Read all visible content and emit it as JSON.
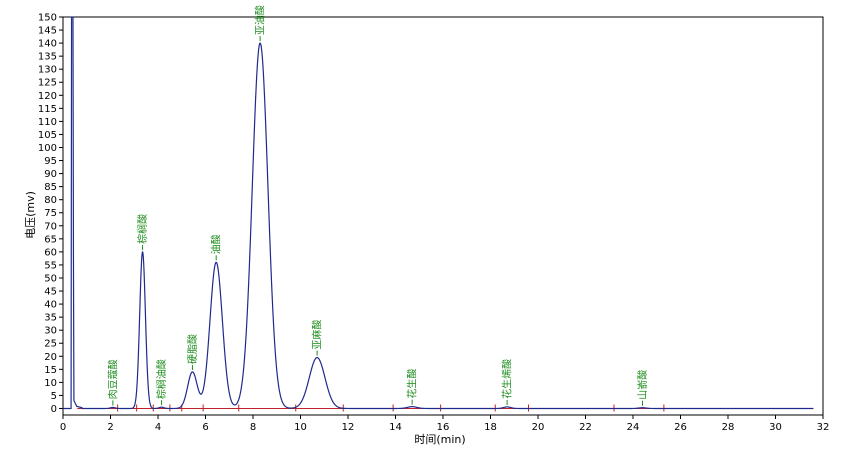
{
  "chart_data": {
    "type": "line",
    "xlabel": "时间(min)",
    "ylabel": "电压(mv)",
    "xlim": [
      0,
      32
    ],
    "ylim": [
      -2.5,
      150
    ],
    "x_ticks": [
      0,
      2,
      4,
      6,
      8,
      10,
      12,
      14,
      16,
      18,
      20,
      22,
      24,
      26,
      28,
      30,
      32
    ],
    "y_ticks": [
      0,
      5,
      10,
      15,
      20,
      25,
      30,
      35,
      40,
      45,
      50,
      55,
      60,
      65,
      70,
      75,
      80,
      85,
      90,
      95,
      100,
      105,
      110,
      115,
      120,
      125,
      130,
      135,
      140,
      145,
      150
    ],
    "grid": false,
    "colors": {
      "trace": "#1f2a8c",
      "baseline": "#c0202a",
      "peak_label": "#1c8c1c",
      "marker": "#c0202a",
      "axis": "#000000"
    },
    "solvent_front": {
      "time": 0.38,
      "height": 150
    },
    "peaks": [
      {
        "name": "肉豆蔻酸",
        "time": 2.1,
        "height": 0.4,
        "width": 0.1
      },
      {
        "name": "棕榈酸",
        "time": 3.35,
        "height": 60,
        "width": 0.12
      },
      {
        "name": "棕榈油酸",
        "time": 4.15,
        "height": 0.5,
        "width": 0.1
      },
      {
        "name": "硬脂酸",
        "time": 5.45,
        "height": 14,
        "width": 0.2
      },
      {
        "name": "油酸",
        "time": 6.45,
        "height": 56,
        "width": 0.26
      },
      {
        "name": "亚油酸",
        "time": 8.3,
        "height": 140,
        "width": 0.33
      },
      {
        "name": "亚麻酸",
        "time": 10.7,
        "height": 19.5,
        "width": 0.33
      },
      {
        "name": "花生酸",
        "time": 14.7,
        "height": 0.7,
        "width": 0.2
      },
      {
        "name": "花生烯酸",
        "time": 18.7,
        "height": 0.6,
        "width": 0.15
      },
      {
        "name": "山嵛酸",
        "time": 24.4,
        "height": 0.3,
        "width": 0.15
      }
    ],
    "integration_marks": [
      2.3,
      3.1,
      3.8,
      4.5,
      5.0,
      5.9,
      7.4,
      9.8,
      11.8,
      13.9,
      15.9,
      18.2,
      19.6,
      23.2,
      25.3
    ]
  }
}
